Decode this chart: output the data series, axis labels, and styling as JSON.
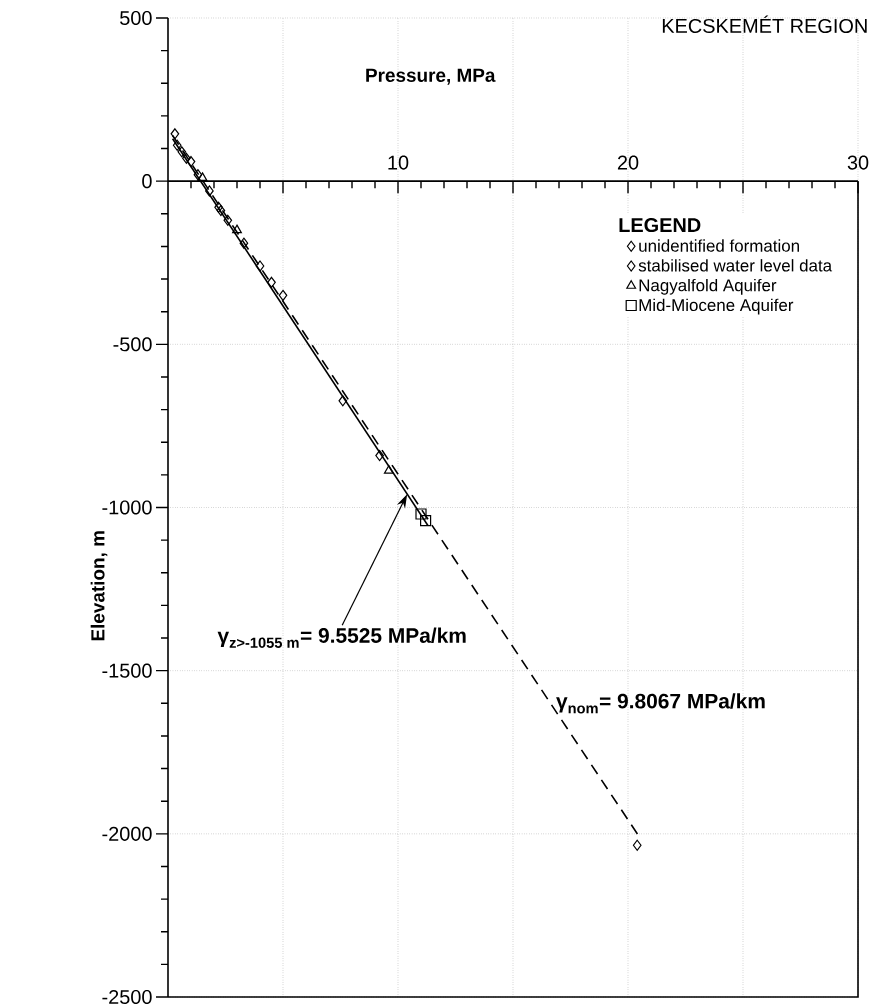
{
  "chart_data": {
    "type": "scatter",
    "title": "KECSKEMÉT REGION",
    "xlabel": "Pressure, MPa",
    "ylabel": "Elevation, m",
    "legend_title": "LEGEND",
    "legend": "top right",
    "grid": true,
    "xlim": [
      0,
      30
    ],
    "ylim": [
      -2500,
      500
    ],
    "xticks": [
      {
        "value": 0,
        "label": null
      },
      {
        "value": 5,
        "label": null
      },
      10,
      {
        "value": 15,
        "label": null
      },
      20,
      {
        "value": 25,
        "label": null
      },
      30
    ],
    "yticks": [
      -2500,
      -2000,
      -1500,
      -1000,
      -500,
      0,
      500
    ],
    "series": [
      {
        "name": "unidentified formation",
        "marker": "diamond",
        "color": "#000000",
        "x": [
          0.3,
          0.4,
          0.6,
          0.8,
          1.3,
          1.8,
          2.3,
          2.6,
          3.3,
          4.0,
          4.5,
          5.0,
          7.6,
          9.2
        ],
        "values": [
          145,
          110,
          90,
          70,
          20,
          -30,
          -90,
          -120,
          -190,
          -260,
          -310,
          -350,
          -673,
          -841
        ]
      },
      {
        "name": "stabilised water level data",
        "marker": "diamond",
        "color": "#000000",
        "x": [
          1.0,
          2.2,
          20.4
        ],
        "values": [
          60,
          -80,
          -2035
        ]
      },
      {
        "name": "Nagyalfold Aquifer",
        "marker": "triangle",
        "color": "#000000",
        "x": [
          1.5,
          3.0,
          9.6
        ],
        "values": [
          10,
          -150,
          -887
        ]
      },
      {
        "name": "Mid-Miocene Aquifer",
        "marker": "square",
        "color": "#000000",
        "x": [
          11.0,
          11.2
        ],
        "values": [
          -1020,
          -1040
        ]
      },
      {
        "type": "line",
        "marker": "none",
        "line_style": "solid",
        "color": "#000000",
        "x": [
          0.2,
          11.3
        ],
        "values": [
          130,
          -1055
        ]
      },
      {
        "type": "line",
        "marker": "none",
        "line_style": "dashed",
        "color": "#000000",
        "x": [
          0.2,
          20.5
        ],
        "values": [
          140,
          -2010
        ]
      }
    ],
    "annotations": [
      {
        "text": "\\text{γ}_{\\text{z>-1055 m}}\\text{= 9.5525 MPa/km}",
        "x": 10.4,
        "y": -959
      },
      {
        "text": "\\text{γ}_{\\text{nom}}\\text{= 9.8067 MPa/km}",
        "x": 16.6,
        "y": -1600
      }
    ]
  }
}
